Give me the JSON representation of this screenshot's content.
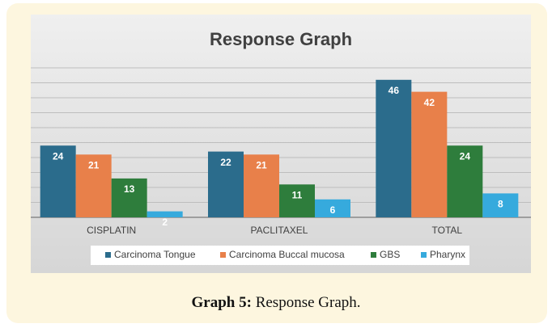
{
  "chart_data": {
    "type": "bar",
    "title": "Response Graph",
    "categories": [
      "CISPLATIN",
      "PACLITAXEL",
      "TOTAL"
    ],
    "series": [
      {
        "name": "Carcinoma Tongue",
        "color": "#2b6c8c",
        "values": [
          24,
          22,
          46
        ]
      },
      {
        "name": "Carcinoma Buccal mucosa",
        "color": "#e8804a",
        "values": [
          21,
          21,
          42
        ]
      },
      {
        "name": "GBS",
        "color": "#2e7d3c",
        "values": [
          13,
          11,
          24
        ]
      },
      {
        "name": "Pharynx",
        "color": "#36aadd",
        "values": [
          2,
          6,
          8
        ]
      }
    ],
    "ylim": [
      0,
      50
    ],
    "yticks": [
      0,
      5,
      10,
      15,
      20,
      25,
      30,
      35,
      40,
      45,
      50
    ],
    "grid": true,
    "legend": "bottom"
  },
  "caption": {
    "label": "Graph 5:",
    "text": "Response Graph."
  }
}
